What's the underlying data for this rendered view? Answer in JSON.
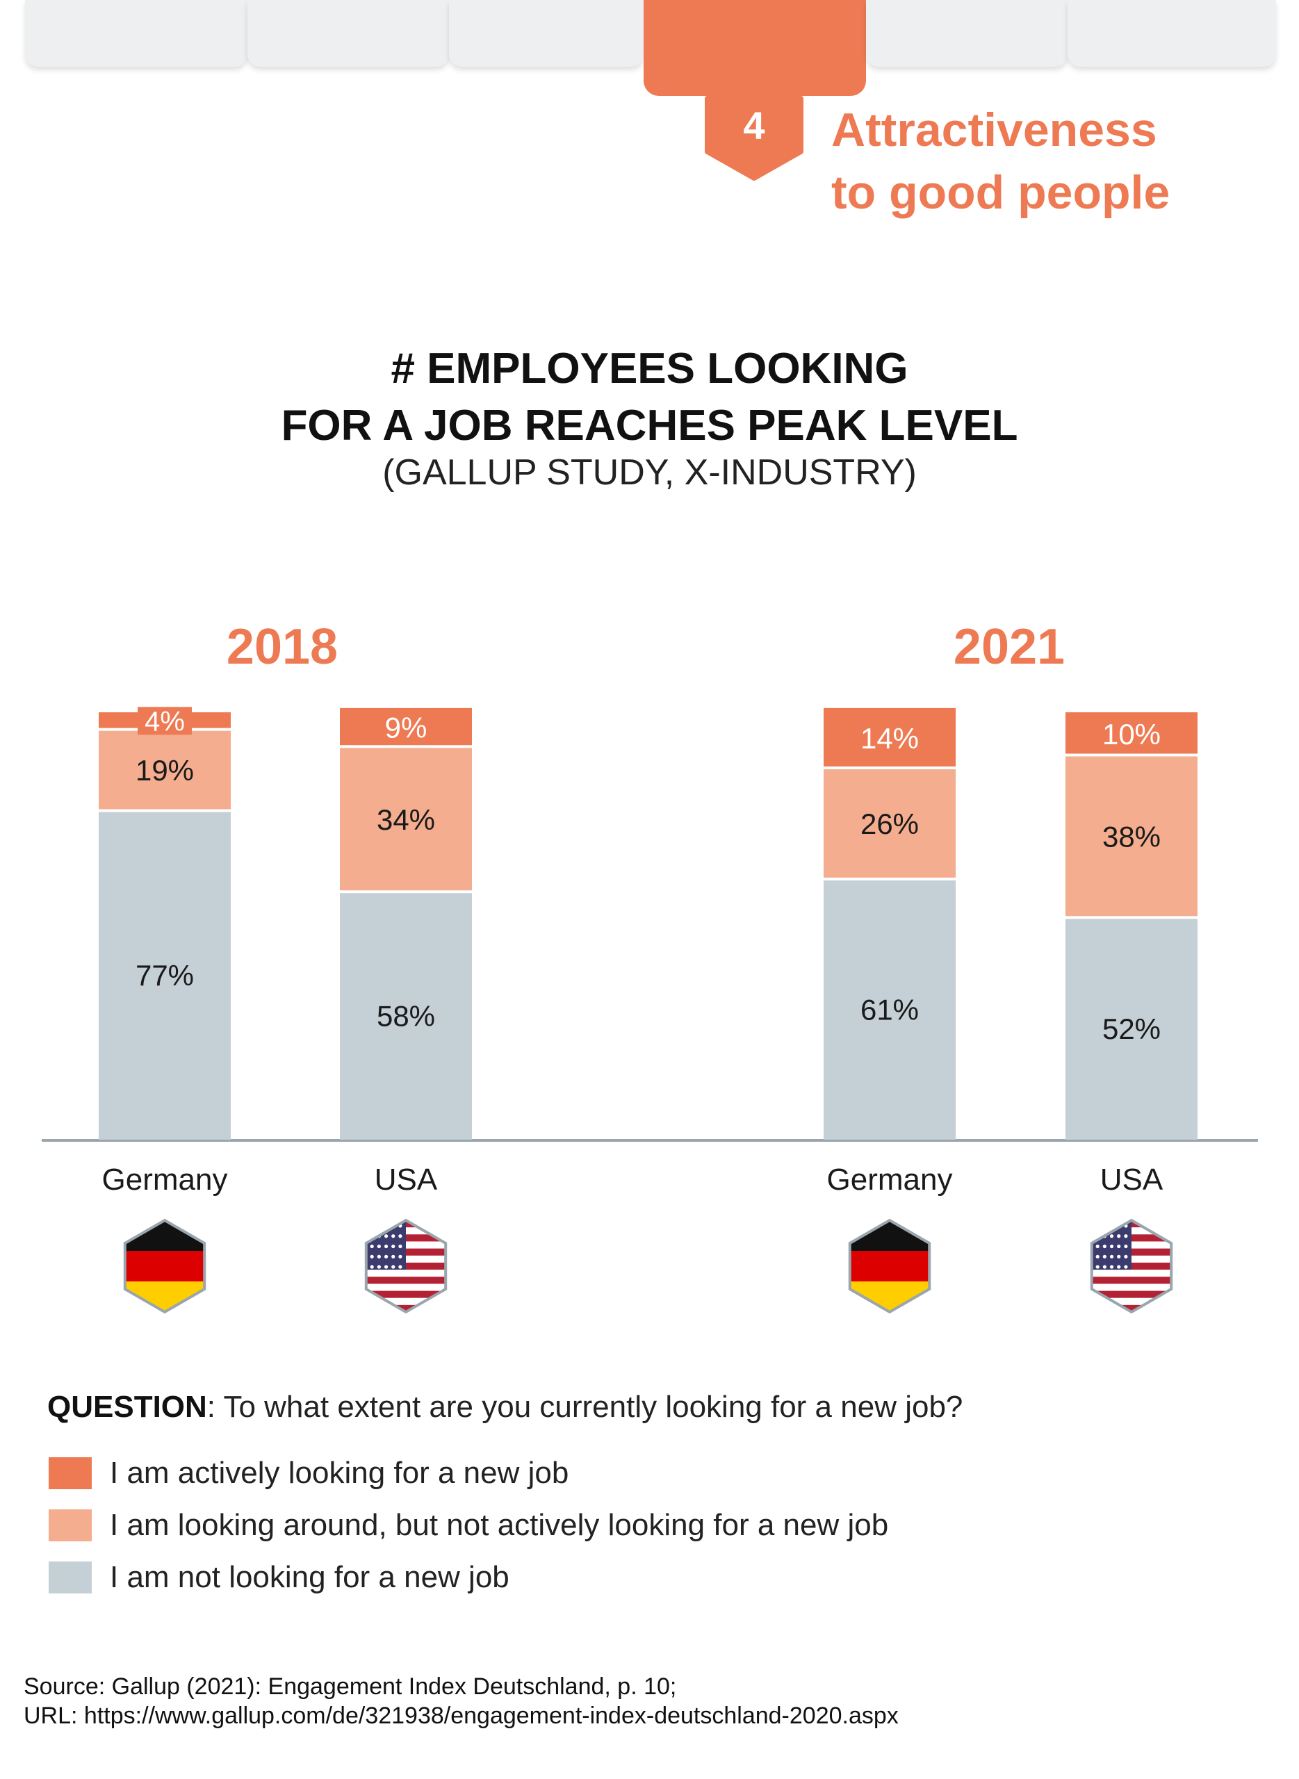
{
  "header": {
    "tab_count": 6,
    "active_tab": 3,
    "section_number": "4",
    "section_title": "Attractiveness\nto good people",
    "accent_color": "#ee7a53"
  },
  "chart_data": {
    "type": "bar",
    "stacked": true,
    "title": "# EMPLOYEES LOOKING\nFOR A JOB REACHES PEAK LEVEL",
    "subtitle": "(GALLUP STUDY, X-INDUSTRY)",
    "groups": [
      "2018",
      "2021"
    ],
    "categories": [
      "Germany",
      "USA",
      "Germany",
      "USA"
    ],
    "category_group": [
      "2018",
      "2018",
      "2021",
      "2021"
    ],
    "flags": [
      "germany-flag-icon",
      "usa-flag-icon",
      "germany-flag-icon",
      "usa-flag-icon"
    ],
    "series": [
      {
        "name": "I am not looking for a new job",
        "color": "#c5cfd6",
        "values": [
          77,
          58,
          61,
          52
        ]
      },
      {
        "name": "I am looking around, but not actively looking for a new job",
        "color": "#f4ad8f",
        "values": [
          19,
          34,
          26,
          38
        ]
      },
      {
        "name": "I am actively looking for a new job",
        "color": "#ee7a53",
        "values": [
          4,
          9,
          14,
          10
        ]
      }
    ],
    "ylim": [
      0,
      100
    ],
    "grid": false,
    "legend_placement": "bottom-left"
  },
  "legend": {
    "question_label": "QUESTION",
    "question_text": ": To what extent are you currently looking for a new job?",
    "items": [
      {
        "label": "I am actively looking for a new job",
        "color": "#ee7a53"
      },
      {
        "label": "I am looking around, but not actively looking for a new job",
        "color": "#f4ad8f"
      },
      {
        "label": "I am not looking for a new job",
        "color": "#c5cfd6"
      }
    ]
  },
  "source": {
    "line1": "Source: Gallup (2021): Engagement Index Deutschland, p. 10;",
    "line2": "URL: https://www.gallup.com/de/321938/engagement-index-deutschland-2020.aspx"
  }
}
